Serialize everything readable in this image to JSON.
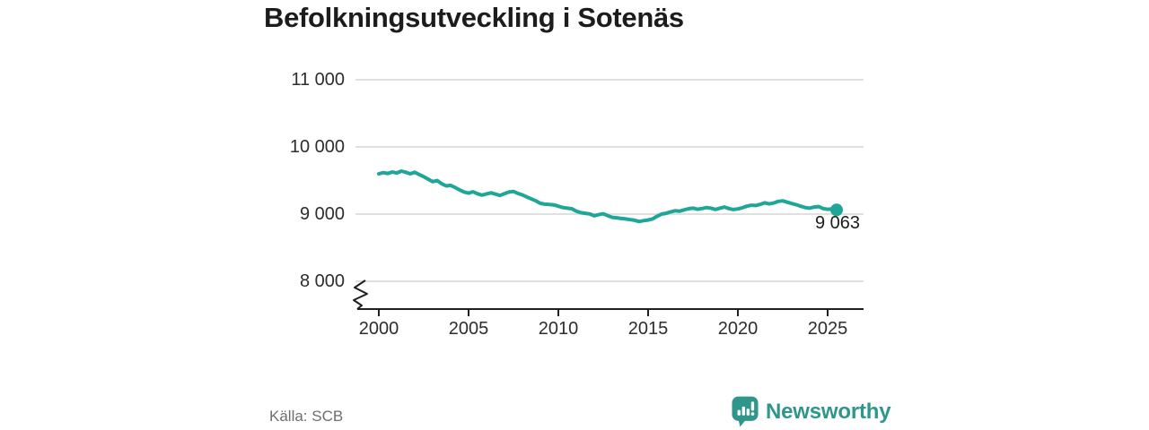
{
  "title": "Befolkningsutveckling i Sotenäs",
  "chart": {
    "end_label": "9 063"
  },
  "footer": {
    "source": "Källa: SCB",
    "logo_text": "Newsworthy"
  },
  "colors": {
    "line": "#1ea698",
    "logo": "#2f968c",
    "grid": "#e0e0e0",
    "axis": "#1f1f1f",
    "tick_text": "#2d2d2d",
    "muted": "#6e6e6e"
  },
  "chart_data": {
    "type": "line",
    "title": "Befolkningsutveckling i Sotenäs",
    "xlabel": "",
    "ylabel": "",
    "x_range": [
      2000,
      2025.5
    ],
    "y_gridline_values": [
      11000,
      10000,
      9000,
      8000
    ],
    "y_tick_labels": [
      "11 000",
      "10 000",
      "9 000",
      "8 000"
    ],
    "x_tick_values": [
      2000,
      2005,
      2010,
      2015,
      2020,
      2025
    ],
    "x_tick_labels": [
      "2000",
      "2005",
      "2010",
      "2015",
      "2020",
      "2025"
    ],
    "y_axis_break": true,
    "legend": "none",
    "end_point": {
      "x": 2025.5,
      "y": 9063,
      "label": "9 063"
    },
    "series": [
      {
        "name": "Befolkning",
        "points": [
          [
            2000.0,
            9600
          ],
          [
            2000.25,
            9618
          ],
          [
            2000.5,
            9605
          ],
          [
            2000.75,
            9625
          ],
          [
            2001.0,
            9612
          ],
          [
            2001.25,
            9640
          ],
          [
            2001.5,
            9622
          ],
          [
            2001.75,
            9600
          ],
          [
            2002.0,
            9622
          ],
          [
            2002.25,
            9590
          ],
          [
            2002.5,
            9558
          ],
          [
            2002.75,
            9520
          ],
          [
            2003.0,
            9482
          ],
          [
            2003.25,
            9500
          ],
          [
            2003.5,
            9452
          ],
          [
            2003.75,
            9420
          ],
          [
            2004.0,
            9428
          ],
          [
            2004.25,
            9396
          ],
          [
            2004.5,
            9360
          ],
          [
            2004.75,
            9330
          ],
          [
            2005.0,
            9312
          ],
          [
            2005.25,
            9332
          ],
          [
            2005.5,
            9302
          ],
          [
            2005.75,
            9282
          ],
          [
            2006.0,
            9300
          ],
          [
            2006.25,
            9318
          ],
          [
            2006.5,
            9298
          ],
          [
            2006.75,
            9278
          ],
          [
            2007.0,
            9305
          ],
          [
            2007.25,
            9328
          ],
          [
            2007.5,
            9338
          ],
          [
            2007.75,
            9308
          ],
          [
            2008.0,
            9285
          ],
          [
            2008.25,
            9255
          ],
          [
            2008.5,
            9225
          ],
          [
            2008.75,
            9198
          ],
          [
            2009.0,
            9160
          ],
          [
            2009.25,
            9148
          ],
          [
            2009.5,
            9142
          ],
          [
            2009.75,
            9138
          ],
          [
            2010.0,
            9118
          ],
          [
            2010.25,
            9098
          ],
          [
            2010.5,
            9088
          ],
          [
            2010.75,
            9080
          ],
          [
            2011.0,
            9042
          ],
          [
            2011.25,
            9022
          ],
          [
            2011.5,
            9012
          ],
          [
            2011.75,
            9002
          ],
          [
            2012.0,
            8975
          ],
          [
            2012.25,
            8992
          ],
          [
            2012.5,
            9005
          ],
          [
            2012.75,
            8978
          ],
          [
            2013.0,
            8952
          ],
          [
            2013.25,
            8945
          ],
          [
            2013.5,
            8935
          ],
          [
            2013.75,
            8928
          ],
          [
            2014.0,
            8918
          ],
          [
            2014.25,
            8908
          ],
          [
            2014.5,
            8890
          ],
          [
            2014.75,
            8902
          ],
          [
            2015.0,
            8912
          ],
          [
            2015.25,
            8928
          ],
          [
            2015.5,
            8968
          ],
          [
            2015.75,
            9000
          ],
          [
            2016.0,
            9012
          ],
          [
            2016.25,
            9032
          ],
          [
            2016.5,
            9050
          ],
          [
            2016.75,
            9042
          ],
          [
            2017.0,
            9062
          ],
          [
            2017.25,
            9080
          ],
          [
            2017.5,
            9090
          ],
          [
            2017.75,
            9072
          ],
          [
            2018.0,
            9082
          ],
          [
            2018.25,
            9098
          ],
          [
            2018.5,
            9088
          ],
          [
            2018.75,
            9070
          ],
          [
            2019.0,
            9088
          ],
          [
            2019.25,
            9105
          ],
          [
            2019.5,
            9082
          ],
          [
            2019.75,
            9068
          ],
          [
            2020.0,
            9078
          ],
          [
            2020.25,
            9095
          ],
          [
            2020.5,
            9118
          ],
          [
            2020.75,
            9132
          ],
          [
            2021.0,
            9128
          ],
          [
            2021.25,
            9145
          ],
          [
            2021.5,
            9168
          ],
          [
            2021.75,
            9152
          ],
          [
            2022.0,
            9165
          ],
          [
            2022.25,
            9190
          ],
          [
            2022.5,
            9198
          ],
          [
            2022.75,
            9178
          ],
          [
            2023.0,
            9158
          ],
          [
            2023.25,
            9140
          ],
          [
            2023.5,
            9118
          ],
          [
            2023.75,
            9098
          ],
          [
            2024.0,
            9088
          ],
          [
            2024.25,
            9105
          ],
          [
            2024.5,
            9112
          ],
          [
            2024.75,
            9082
          ],
          [
            2025.0,
            9072
          ],
          [
            2025.25,
            9078
          ],
          [
            2025.5,
            9063
          ]
        ]
      }
    ]
  }
}
